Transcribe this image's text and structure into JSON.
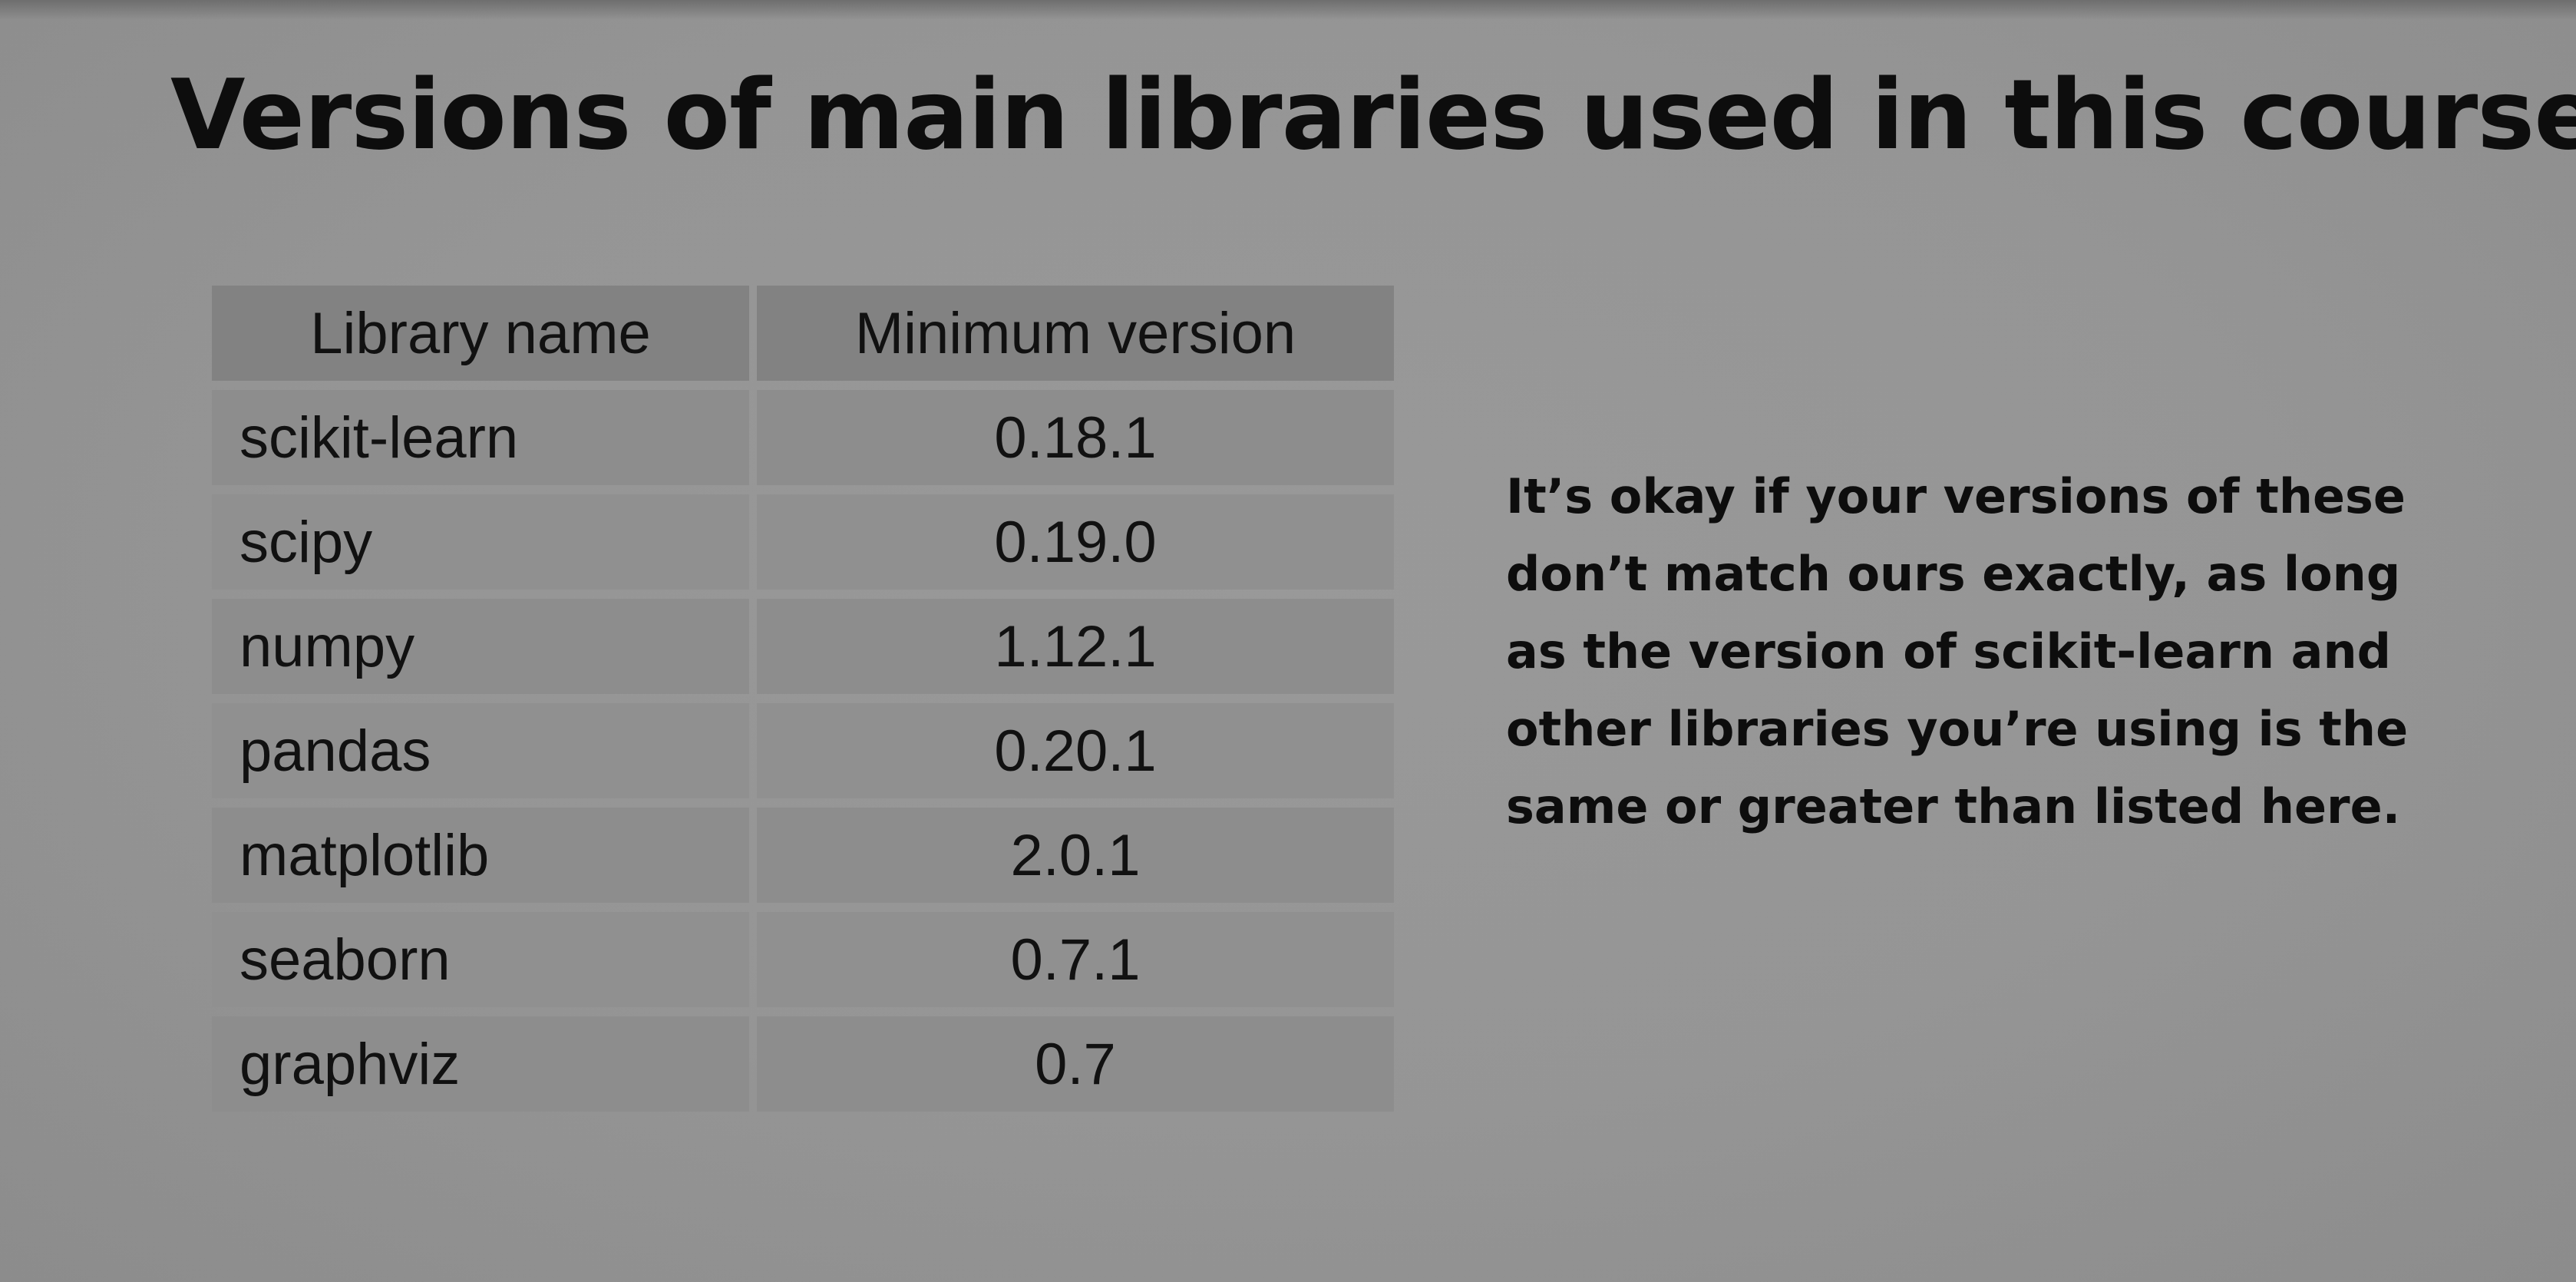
{
  "slide": {
    "title": "Versions of main libraries used in this course"
  },
  "table": {
    "headers": [
      "Library name",
      "Minimum version"
    ],
    "rows": [
      {
        "library": "scikit-learn",
        "version": "0.18.1"
      },
      {
        "library": "scipy",
        "version": "0.19.0"
      },
      {
        "library": "numpy",
        "version": "1.12.1"
      },
      {
        "library": "pandas",
        "version": "0.20.1"
      },
      {
        "library": "matplotlib",
        "version": "2.0.1"
      },
      {
        "library": "seaborn",
        "version": "0.7.1"
      },
      {
        "library": "graphviz",
        "version": "0.7"
      }
    ]
  },
  "note": {
    "text": "It’s okay if your versions of these don’t match ours exactly, as long as the version of scikit-learn and other libraries you’re using is the same or greater than listed here."
  },
  "colors": {
    "background": "#959595",
    "header_cell": "#828282",
    "body_cell": "#8d8d8d",
    "text": "#0d0d0d"
  }
}
